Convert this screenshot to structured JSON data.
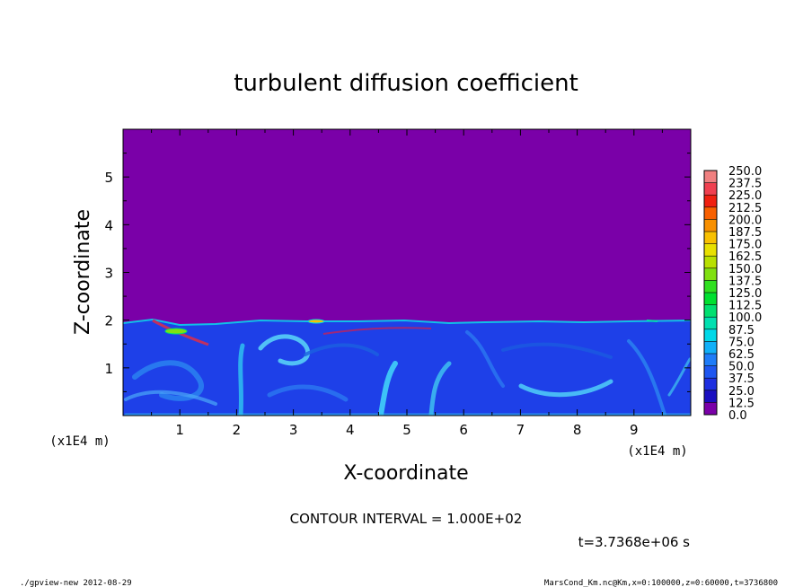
{
  "chart_data": {
    "type": "heatmap",
    "title": "turbulent diffusion coefficient",
    "xlabel": "X-coordinate",
    "ylabel": "Z-coordinate",
    "x_unit": "(x1E4 m)",
    "y_unit": "(x1E4 m)",
    "x_ticks": [
      "1",
      "2",
      "3",
      "4",
      "5",
      "6",
      "7",
      "8",
      "9"
    ],
    "y_ticks": [
      "1",
      "2",
      "3",
      "4",
      "5"
    ],
    "xlim": [
      0,
      10
    ],
    "ylim": [
      0,
      6
    ],
    "field": {
      "top_of_turbulent_layer": 1.95,
      "value_above_layer": 0.0,
      "typical_value_in_layer": [
        25.0,
        75.0
      ],
      "local_maxima_near_layer_top": [
        {
          "x": 0.6,
          "z": 1.75,
          "value": 225.0
        },
        {
          "x": 3.5,
          "z": 1.95,
          "value": 200.0
        }
      ]
    },
    "colorbar": {
      "levels": [
        "0.0",
        "12.5",
        "25.0",
        "37.5",
        "50.0",
        "62.5",
        "75.0",
        "87.5",
        "100.0",
        "112.5",
        "125.0",
        "137.5",
        "150.0",
        "162.5",
        "175.0",
        "187.5",
        "200.0",
        "212.5",
        "225.0",
        "237.5",
        "250.0"
      ],
      "colors": [
        "#7a00a8",
        "#1a0fc0",
        "#1e30e0",
        "#1e56f0",
        "#1e7cf8",
        "#10b0f8",
        "#00d8e8",
        "#00e0b0",
        "#00e070",
        "#00e030",
        "#30e020",
        "#80e010",
        "#b8e000",
        "#e8e000",
        "#f8c000",
        "#f89000",
        "#f86000",
        "#f02010",
        "#f04050",
        "#f08080"
      ]
    },
    "contour_interval": "CONTOUR INTERVAL = 1.000E+02",
    "time_label": "t=3.7368e+06 s"
  },
  "footer": {
    "left": "./gpview-new   2012-08-29",
    "right": "MarsCond_Km.nc@Km,x=0:100000,z=0:60000,t=3736800"
  }
}
